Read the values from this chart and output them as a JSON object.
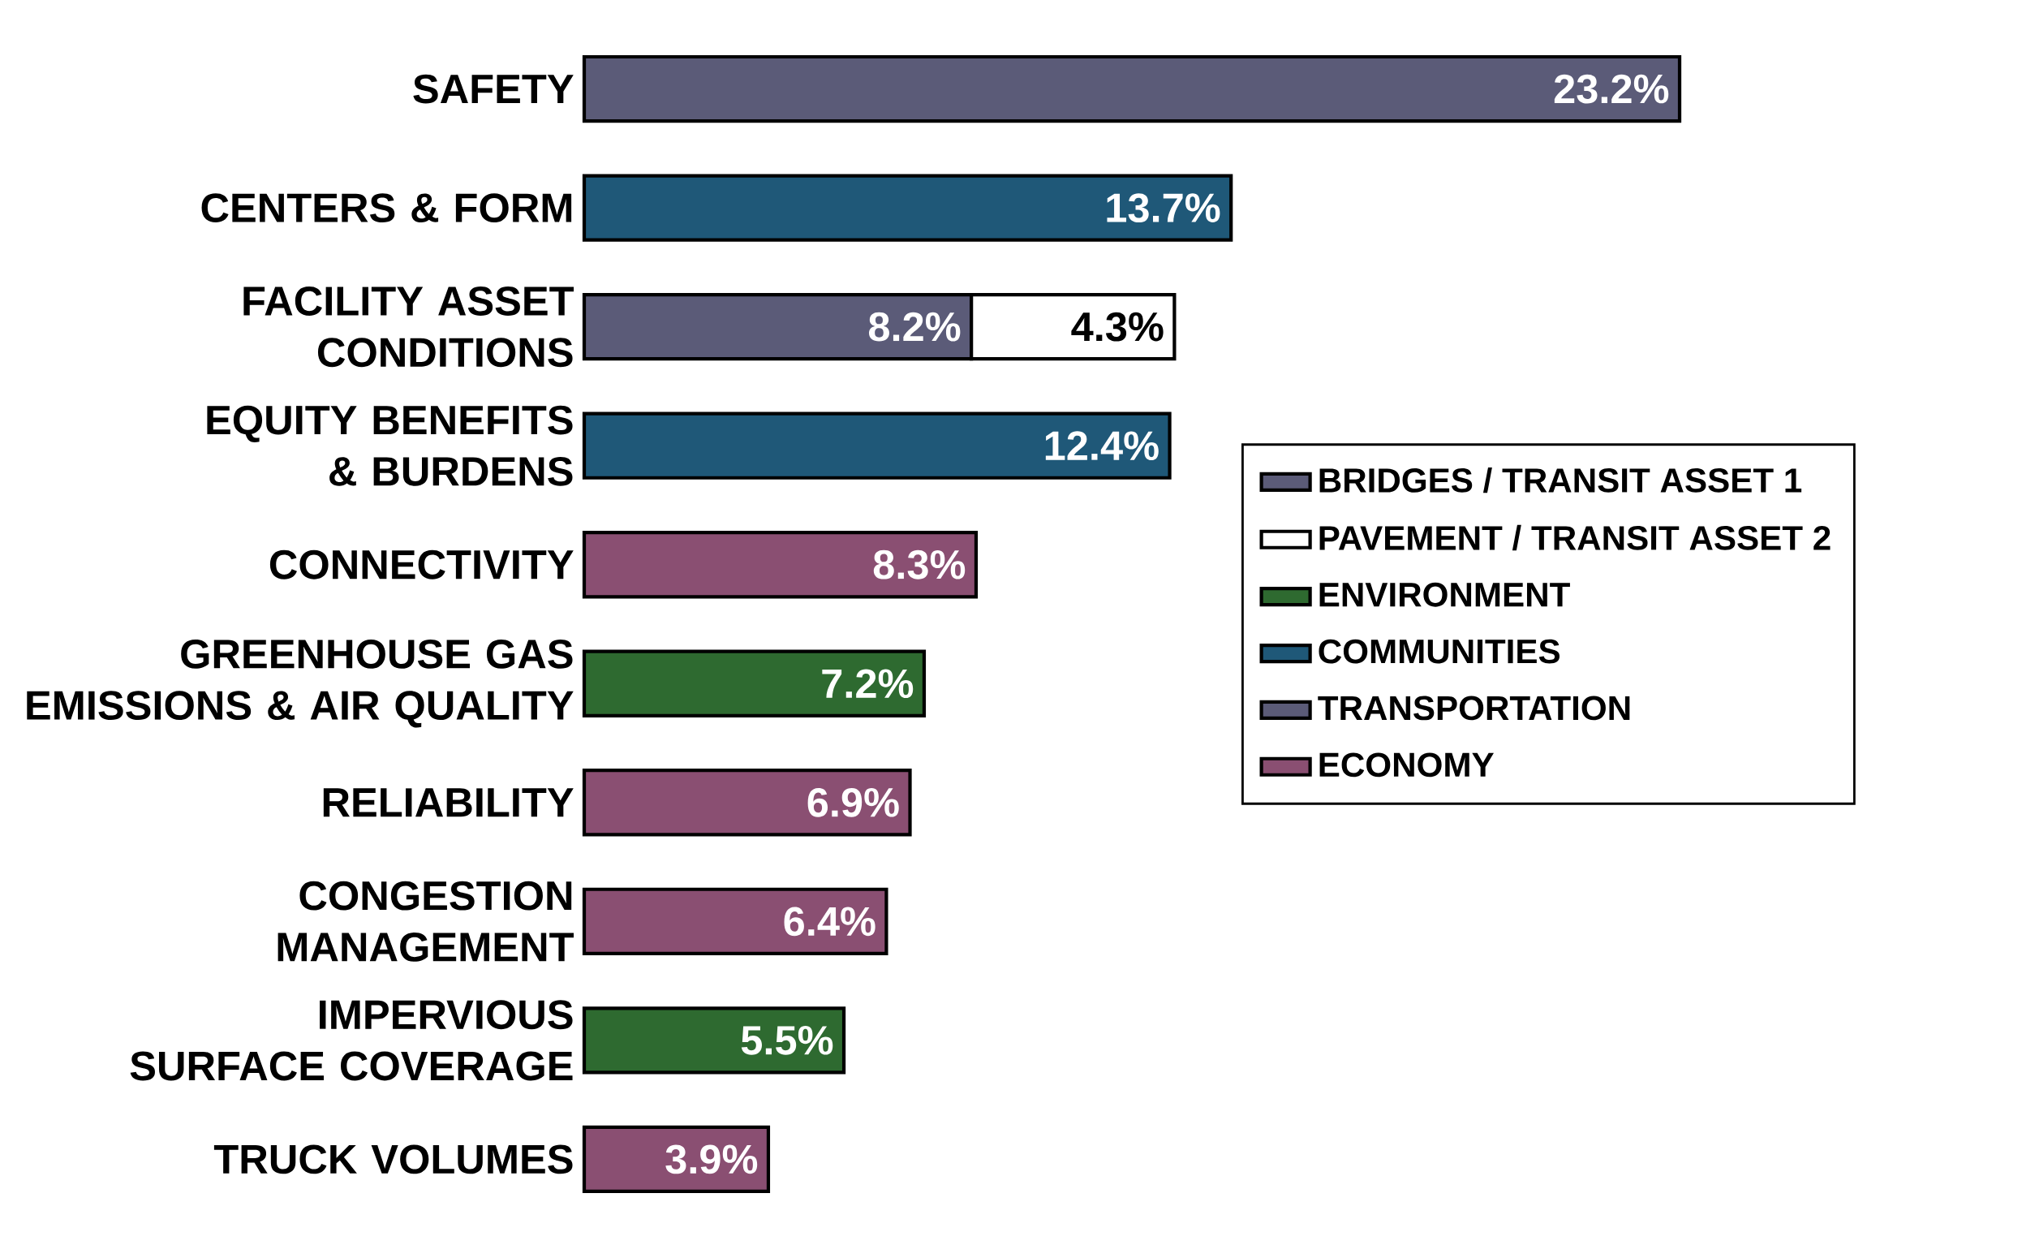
{
  "chart_data": {
    "type": "bar",
    "orientation": "horizontal",
    "stacked": true,
    "tick_labels": "y",
    "legend": "right",
    "categories": [
      "SAFETY",
      "CENTERS & FORM",
      "FACILITY ASSET CONDITIONS",
      "EQUITY BENEFITS & BURDENS",
      "CONNECTIVITY",
      "GREENHOUSE GAS EMISSIONS & AIR QUALITY",
      "RELIABILITY",
      "CONGESTION MANAGEMENT",
      "IMPERVIOUS SURFACE COVERAGE",
      "TRUCK VOLUMES"
    ],
    "series": [
      {
        "name": "BRIDGES / TRANSIT ASSET 1",
        "color": "#5b5b78",
        "values": [
          null,
          null,
          8.2,
          null,
          null,
          null,
          null,
          null,
          null,
          null
        ],
        "value_labels": [
          null,
          null,
          "8.2%",
          null,
          null,
          null,
          null,
          null,
          null,
          null
        ]
      },
      {
        "name": "PAVEMENT / TRANSIT ASSET 2",
        "color": "#ffffff",
        "values": [
          null,
          null,
          4.3,
          null,
          null,
          null,
          null,
          null,
          null,
          null
        ],
        "value_labels": [
          null,
          null,
          "4.3%",
          null,
          null,
          null,
          null,
          null,
          null,
          null
        ]
      },
      {
        "name": "ENVIRONMENT",
        "color": "#2e6a30",
        "values": [
          null,
          null,
          null,
          null,
          null,
          7.2,
          null,
          null,
          5.5,
          null
        ],
        "value_labels": [
          null,
          null,
          null,
          null,
          null,
          "7.2%",
          null,
          null,
          "5.5%",
          null
        ]
      },
      {
        "name": "COMMUNITIES",
        "color": "#1f5878",
        "values": [
          null,
          13.7,
          null,
          12.4,
          null,
          null,
          null,
          null,
          null,
          null
        ],
        "value_labels": [
          null,
          "13.7%",
          null,
          "12.4%",
          null,
          null,
          null,
          null,
          null,
          null
        ]
      },
      {
        "name": "TRANSPORTATION",
        "color": "#5b5b78",
        "values": [
          23.2,
          null,
          null,
          null,
          null,
          null,
          null,
          null,
          null,
          null
        ],
        "value_labels": [
          "23.2%",
          null,
          null,
          null,
          null,
          null,
          null,
          null,
          null,
          null
        ]
      },
      {
        "name": "ECONOMY",
        "color": "#8a4f72",
        "values": [
          null,
          null,
          null,
          null,
          8.3,
          null,
          6.9,
          6.4,
          null,
          3.9
        ],
        "value_labels": [
          null,
          null,
          null,
          null,
          "8.3%",
          null,
          "6.9%",
          "6.4%",
          null,
          "3.9%"
        ]
      }
    ]
  }
}
